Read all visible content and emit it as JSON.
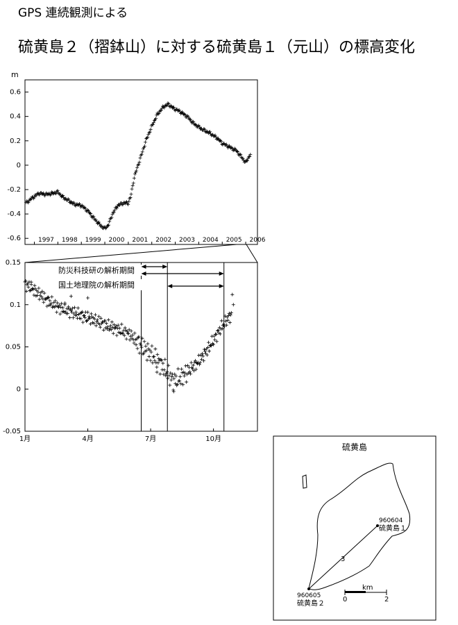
{
  "header": {
    "supertitle": "GPS 連続観測による",
    "title": "硫黄島２（摺鉢山）に対する硫黄島１（元山）の標高変化"
  },
  "chart_data": [
    {
      "type": "scatter",
      "ylabel": "m",
      "xlim": [
        1996.6,
        2006.5
      ],
      "ylim": [
        -0.65,
        0.7
      ],
      "yticks": [
        0.6,
        0.4,
        0.2,
        0,
        -0.2,
        -0.4,
        -0.6
      ],
      "ytick_labels": [
        "0.6",
        "0.4",
        "0.2",
        "0",
        "-0.2",
        "-0.4",
        "-0.6"
      ],
      "xtick_labels": [
        "1997",
        "1998",
        "1999",
        "2000",
        "2001",
        "2002",
        "2003",
        "2004",
        "2005",
        "2006"
      ],
      "marker": "+",
      "series": [
        {
          "x": [
            1996.65,
            1996.9,
            1997.2,
            1997.5,
            1997.8,
            1998.0,
            1998.2,
            1998.45,
            1998.7,
            1999.0,
            1999.3,
            1999.6,
            1999.85,
            2000.0,
            2000.15,
            2000.35,
            2000.55,
            2000.8,
            2001.0,
            2001.1,
            2001.25,
            2001.5,
            2001.75,
            2002.0,
            2002.25,
            2002.5,
            2002.7,
            2002.9,
            2003.2,
            2003.5,
            2003.8,
            2004.1,
            2004.5,
            2004.8,
            2005.0,
            2005.3,
            2005.6,
            2005.85,
            2006.0,
            2006.2
          ],
          "y": [
            -0.31,
            -0.27,
            -0.23,
            -0.24,
            -0.23,
            -0.22,
            -0.26,
            -0.29,
            -0.32,
            -0.33,
            -0.38,
            -0.45,
            -0.5,
            -0.52,
            -0.49,
            -0.39,
            -0.33,
            -0.31,
            -0.31,
            -0.26,
            -0.1,
            0.05,
            0.2,
            0.32,
            0.42,
            0.48,
            0.5,
            0.47,
            0.44,
            0.4,
            0.34,
            0.3,
            0.26,
            0.22,
            0.18,
            0.15,
            0.12,
            0.06,
            0.02,
            0.09
          ]
        }
      ]
    },
    {
      "type": "scatter",
      "xlim": [
        0,
        11.1
      ],
      "ylim": [
        -0.05,
        0.15
      ],
      "yticks": [
        0.15,
        0.1,
        0.05,
        0,
        -0.05
      ],
      "ytick_labels": [
        "0.15",
        "0.1",
        "0.05",
        "0",
        "-0.05"
      ],
      "xticks": [
        0,
        3,
        6,
        9
      ],
      "xtick_labels": [
        "1月",
        "4月",
        "7月",
        "10月"
      ],
      "marker": "+",
      "vlines": [
        5.55,
        6.8,
        9.5
      ],
      "annotations": [
        {
          "text": "防災科技研の解析期間",
          "arrows": [
            [
              5.55,
              6.8
            ],
            [
              5.55,
              9.5
            ]
          ]
        },
        {
          "text": "国土地理院の解析期間",
          "arrows": [
            [
              6.8,
              9.5
            ]
          ]
        }
      ],
      "series": [
        {
          "x": [
            0.0,
            0.2,
            0.4,
            0.6,
            0.8,
            1.0,
            1.2,
            1.4,
            1.6,
            1.8,
            2.0,
            2.2,
            2.4,
            2.6,
            2.8,
            3.0,
            3.2,
            3.4,
            3.6,
            3.8,
            4.0,
            4.2,
            4.4,
            4.6,
            4.8,
            5.0,
            5.2,
            5.4,
            5.6,
            5.8,
            6.0,
            6.2,
            6.4,
            6.6,
            6.8,
            7.0,
            7.2,
            7.4,
            7.6,
            7.8,
            8.0,
            8.2,
            8.4,
            8.6,
            8.8,
            9.0,
            9.2,
            9.4,
            9.6,
            9.8
          ],
          "y": [
            0.124,
            0.122,
            0.118,
            0.114,
            0.111,
            0.106,
            0.103,
            0.1,
            0.097,
            0.095,
            0.093,
            0.092,
            0.09,
            0.088,
            0.086,
            0.085,
            0.083,
            0.081,
            0.079,
            0.077,
            0.074,
            0.073,
            0.071,
            0.069,
            0.067,
            0.065,
            0.06,
            0.055,
            0.05,
            0.046,
            0.042,
            0.037,
            0.032,
            0.026,
            0.019,
            0.012,
            0.01,
            0.013,
            0.017,
            0.021,
            0.026,
            0.03,
            0.036,
            0.043,
            0.05,
            0.058,
            0.066,
            0.074,
            0.081,
            0.087
          ]
        }
      ]
    }
  ],
  "inset": {
    "title": "硫黄島",
    "station1_code": "960604",
    "station1_name": "硫黄島１",
    "station2_code": "960605",
    "station2_name": "硫黄島２",
    "baseline_label": "3",
    "scale_unit": "km",
    "scale_min": "0",
    "scale_max": "2"
  }
}
